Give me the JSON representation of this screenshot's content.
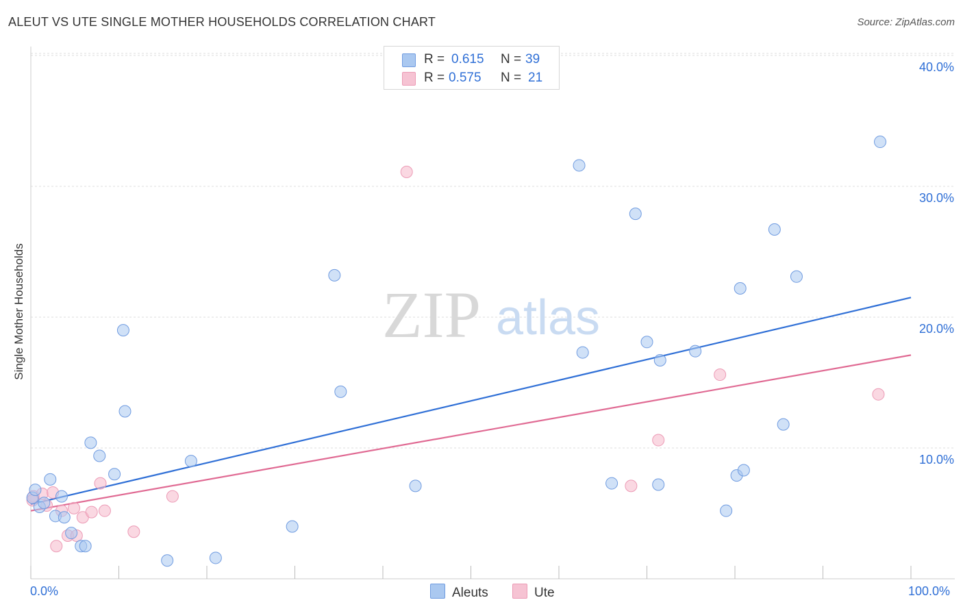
{
  "title": "ALEUT VS UTE SINGLE MOTHER HOUSEHOLDS CORRELATION CHART",
  "source": "Source: ZipAtlas.com",
  "watermark": {
    "zip": "ZIP",
    "atlas": "atlas"
  },
  "legend": {
    "rows": [
      {
        "r_label": "R =",
        "r_value": "0.615",
        "n_label": "N =",
        "n_value": "39"
      },
      {
        "r_label": "R =",
        "r_value": "0.575",
        "n_label": "N =",
        "n_value": "21"
      }
    ]
  },
  "bottom_legend": {
    "aleuts": "Aleuts",
    "ute": "Ute"
  },
  "colors": {
    "aleuts_fill": "#aac8f0",
    "aleuts_line": "#2f6fd6",
    "ute_fill": "#f6b8cb",
    "ute_line": "#e06a93",
    "accent_text": "#2f6fd6"
  },
  "chart_data": {
    "type": "scatter",
    "title": "ALEUT VS UTE SINGLE MOTHER HOUSEHOLDS CORRELATION CHART",
    "ylabel": "Single Mother Households",
    "xlabel": "",
    "xlim": [
      0,
      100
    ],
    "ylim": [
      0,
      40
    ],
    "x_tick_labels": {
      "min": "0.0%",
      "max": "100.0%"
    },
    "y_ticks": [
      10,
      20,
      30,
      40
    ],
    "y_tick_labels": [
      "10.0%",
      "20.0%",
      "30.0%",
      "40.0%"
    ],
    "grid": true,
    "series": [
      {
        "name": "Aleuts",
        "r": 0.615,
        "n": 39,
        "trend": {
          "x0": 0,
          "y0": 5.7,
          "x1": 100,
          "y1": 21.5
        },
        "points": [
          {
            "x": 0.2,
            "y": 6.2
          },
          {
            "x": 1.0,
            "y": 5.5
          },
          {
            "x": 1.5,
            "y": 5.8
          },
          {
            "x": 2.2,
            "y": 7.6
          },
          {
            "x": 2.8,
            "y": 4.8
          },
          {
            "x": 3.5,
            "y": 6.3
          },
          {
            "x": 3.8,
            "y": 4.7
          },
          {
            "x": 4.6,
            "y": 3.5
          },
          {
            "x": 5.7,
            "y": 2.5
          },
          {
            "x": 6.2,
            "y": 2.5
          },
          {
            "x": 6.8,
            "y": 10.4
          },
          {
            "x": 7.8,
            "y": 9.4
          },
          {
            "x": 9.5,
            "y": 8.0
          },
          {
            "x": 10.5,
            "y": 19.0
          },
          {
            "x": 10.7,
            "y": 12.8
          },
          {
            "x": 15.5,
            "y": 1.4
          },
          {
            "x": 18.2,
            "y": 9.0
          },
          {
            "x": 21.0,
            "y": 1.6
          },
          {
            "x": 29.7,
            "y": 4.0
          },
          {
            "x": 34.5,
            "y": 23.2
          },
          {
            "x": 35.2,
            "y": 14.3
          },
          {
            "x": 43.7,
            "y": 7.1
          },
          {
            "x": 66.0,
            "y": 7.3
          },
          {
            "x": 62.3,
            "y": 31.6
          },
          {
            "x": 62.7,
            "y": 17.3
          },
          {
            "x": 68.7,
            "y": 27.9
          },
          {
            "x": 70.0,
            "y": 18.1
          },
          {
            "x": 71.5,
            "y": 16.7
          },
          {
            "x": 71.3,
            "y": 7.2
          },
          {
            "x": 75.5,
            "y": 17.4
          },
          {
            "x": 79.0,
            "y": 5.2
          },
          {
            "x": 80.2,
            "y": 7.9
          },
          {
            "x": 80.6,
            "y": 22.2
          },
          {
            "x": 81.0,
            "y": 8.3
          },
          {
            "x": 84.5,
            "y": 26.7
          },
          {
            "x": 85.5,
            "y": 11.8
          },
          {
            "x": 87.0,
            "y": 23.1
          },
          {
            "x": 96.5,
            "y": 33.4
          },
          {
            "x": 0.5,
            "y": 6.8
          }
        ]
      },
      {
        "name": "Ute",
        "r": 0.575,
        "n": 21,
        "trend": {
          "x0": 0,
          "y0": 5.2,
          "x1": 100,
          "y1": 17.1
        },
        "points": [
          {
            "x": 0.3,
            "y": 6.3
          },
          {
            "x": 1.3,
            "y": 6.5
          },
          {
            "x": 1.8,
            "y": 5.6
          },
          {
            "x": 2.5,
            "y": 6.6
          },
          {
            "x": 2.9,
            "y": 2.5
          },
          {
            "x": 3.5,
            "y": 5.2
          },
          {
            "x": 4.2,
            "y": 3.3
          },
          {
            "x": 4.9,
            "y": 5.4
          },
          {
            "x": 5.2,
            "y": 3.3
          },
          {
            "x": 5.9,
            "y": 4.7
          },
          {
            "x": 6.9,
            "y": 5.1
          },
          {
            "x": 7.9,
            "y": 7.3
          },
          {
            "x": 8.4,
            "y": 5.2
          },
          {
            "x": 11.7,
            "y": 3.6
          },
          {
            "x": 16.1,
            "y": 6.3
          },
          {
            "x": 42.7,
            "y": 31.1
          },
          {
            "x": 68.2,
            "y": 7.1
          },
          {
            "x": 71.3,
            "y": 10.6
          },
          {
            "x": 78.3,
            "y": 15.6
          },
          {
            "x": 96.3,
            "y": 14.1
          },
          {
            "x": 0.2,
            "y": 6.0
          }
        ]
      }
    ]
  }
}
